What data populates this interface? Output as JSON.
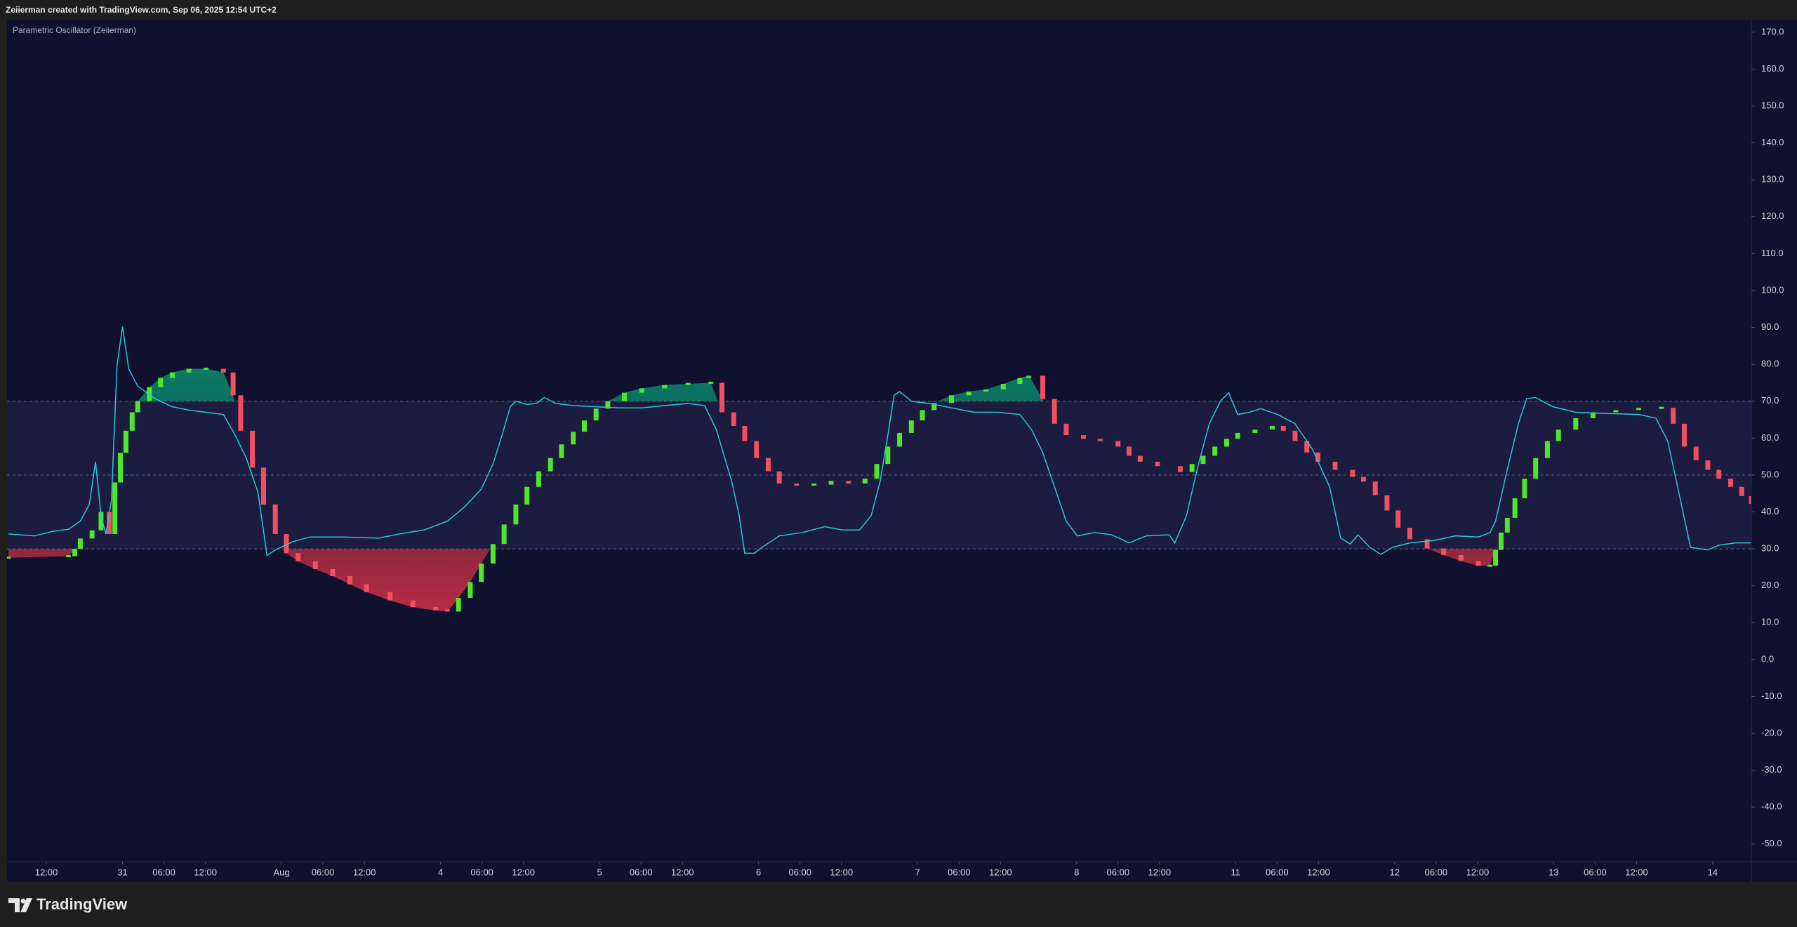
{
  "header": {
    "text": "Zeiierman created with TradingView.com, Sep 06, 2025 12:54 UTC+2"
  },
  "footer": {
    "brand": "TradingView"
  },
  "chart_data": {
    "type": "oscillator",
    "title": "Parametric Oscillator (Zeiierman)",
    "xlim": [
      -5.7,
      246.6
    ],
    "ylim": [
      -54.8,
      173.4
    ],
    "levels": [
      70,
      50,
      30
    ],
    "band": [
      30,
      70
    ],
    "band_color": "#1c1b40",
    "background": "#10112e",
    "xticks": [
      {
        "value": 0,
        "label": "12:00"
      },
      {
        "value": 11,
        "label": "31"
      },
      {
        "value": 17,
        "label": "06:00"
      },
      {
        "value": 23,
        "label": "12:00"
      },
      {
        "value": 34,
        "label": "Aug"
      },
      {
        "value": 40,
        "label": "06:00"
      },
      {
        "value": 46,
        "label": "12:00"
      },
      {
        "value": 57,
        "label": "4"
      },
      {
        "value": 63,
        "label": "06:00"
      },
      {
        "value": 69,
        "label": "12:00"
      },
      {
        "value": 80,
        "label": "5"
      },
      {
        "value": 86,
        "label": "06:00"
      },
      {
        "value": 92,
        "label": "12:00"
      },
      {
        "value": 103,
        "label": "6"
      },
      {
        "value": 109,
        "label": "06:00"
      },
      {
        "value": 115,
        "label": "12:00"
      },
      {
        "value": 126,
        "label": "7"
      },
      {
        "value": 132,
        "label": "06:00"
      },
      {
        "value": 138,
        "label": "12:00"
      },
      {
        "value": 149,
        "label": "8"
      },
      {
        "value": 155,
        "label": "06:00"
      },
      {
        "value": 161,
        "label": "12:00"
      },
      {
        "value": 172,
        "label": "11"
      },
      {
        "value": 178,
        "label": "06:00"
      },
      {
        "value": 184,
        "label": "12:00"
      },
      {
        "value": 195,
        "label": "12"
      },
      {
        "value": 201,
        "label": "06:00"
      },
      {
        "value": 207,
        "label": "12:00"
      },
      {
        "value": 218,
        "label": "13"
      },
      {
        "value": 224,
        "label": "06:00"
      },
      {
        "value": 230,
        "label": "12:00"
      },
      {
        "value": 241,
        "label": "14"
      }
    ],
    "yticks": [
      {
        "value": 170,
        "label": "170.0"
      },
      {
        "value": 160,
        "label": "160.0"
      },
      {
        "value": 150,
        "label": "150.0"
      },
      {
        "value": 140,
        "label": "140.0"
      },
      {
        "value": 130,
        "label": "130.0"
      },
      {
        "value": 120,
        "label": "120.0"
      },
      {
        "value": 110,
        "label": "110.0"
      },
      {
        "value": 100,
        "label": "100.0"
      },
      {
        "value": 90,
        "label": "90.0"
      },
      {
        "value": 80,
        "label": "80.0"
      },
      {
        "value": 70,
        "label": "70.0"
      },
      {
        "value": 60,
        "label": "60.0"
      },
      {
        "value": 50,
        "label": "50.0"
      },
      {
        "value": 40,
        "label": "40.0"
      },
      {
        "value": 30,
        "label": "30.0"
      },
      {
        "value": 20,
        "label": "20.0"
      },
      {
        "value": 10,
        "label": "10.0"
      },
      {
        "value": 0,
        "label": "0.0"
      },
      {
        "value": -10,
        "label": "-10.0"
      },
      {
        "value": -20,
        "label": "-20.0"
      },
      {
        "value": -30,
        "label": "-30.0"
      },
      {
        "value": -40,
        "label": "-40.0"
      },
      {
        "value": -50,
        "label": "-50.0"
      }
    ],
    "series": [
      {
        "type": "candles",
        "up_color": "#4ee62a",
        "down_color": "#f0505f",
        "upper_fill": "#0a9e78",
        "lower_fill": "#e0344a",
        "x": [
          -5.5,
          3.2,
          4.1,
          4.9,
          6.6,
          7.9,
          9.1,
          9.9,
          10.7,
          11.5,
          12.4,
          13.2,
          14.9,
          16.5,
          18.2,
          20.6,
          23.1,
          25.6,
          27.0,
          28.1,
          29.8,
          31.4,
          33.1,
          34.7,
          36.4,
          38.9,
          41.4,
          43.9,
          46.3,
          49.7,
          53.0,
          56.3,
          58.0,
          59.6,
          61.3,
          62.9,
          64.6,
          66.2,
          67.9,
          69.5,
          71.2,
          72.9,
          74.5,
          76.2,
          77.8,
          79.5,
          81.2,
          83.6,
          86.1,
          89.4,
          92.8,
          96.1,
          97.7,
          99.4,
          101.0,
          102.7,
          104.4,
          106.0,
          108.5,
          111.0,
          113.5,
          116.0,
          118.4,
          120.1,
          121.7,
          123.4,
          125.1,
          126.7,
          128.4,
          130.9,
          133.4,
          135.9,
          138.4,
          140.8,
          142.1,
          144.1,
          145.8,
          147.5,
          150.0,
          152.4,
          155.0,
          156.6,
          158.2,
          160.7,
          164.0,
          165.7,
          167.3,
          169.0,
          170.7,
          172.3,
          174.8,
          177.3,
          178.9,
          180.6,
          182.3,
          183.9,
          186.4,
          188.9,
          190.5,
          192.2,
          193.9,
          195.5,
          197.2,
          199.7,
          202.1,
          204.6,
          207.1,
          208.8,
          209.6,
          210.4,
          211.3,
          212.4,
          213.8,
          215.4,
          217.1,
          218.7,
          221.2,
          223.7,
          227.0,
          230.3,
          233.6,
          235.3,
          236.9,
          238.6,
          240.3,
          241.9,
          243.6,
          245.2,
          246.6
        ],
        "values": [
          27.6,
          28,
          30,
          32.8,
          35,
          40,
          34,
          48,
          56,
          62,
          67,
          70,
          73.8,
          76.3,
          77.8,
          78.8,
          78.8,
          77.8,
          71.6,
          62,
          52,
          42,
          34,
          28.8,
          26.6,
          24.5,
          22.6,
          20.4,
          18.3,
          16,
          14.2,
          13.3,
          13,
          16.7,
          21,
          26,
          31.3,
          36.6,
          42,
          46.8,
          51,
          54.6,
          58.3,
          61.7,
          64.8,
          68,
          70,
          72.3,
          73.5,
          74.4,
          74.7,
          75,
          67,
          63.3,
          59.2,
          54.6,
          51,
          47.7,
          47.1,
          47.4,
          48.4,
          47.7,
          49,
          53,
          57.7,
          61.4,
          64.8,
          67.6,
          69.5,
          71.6,
          72.6,
          73.2,
          74.7,
          76.3,
          76.9,
          70.6,
          63.9,
          60.8,
          59.8,
          59.2,
          57.7,
          55.2,
          53.6,
          52.4,
          50.8,
          53,
          55.2,
          57.7,
          59.8,
          61.4,
          62.3,
          63.3,
          62,
          59.2,
          56.1,
          53.6,
          51.4,
          49.5,
          48.2,
          44.5,
          40.4,
          35.7,
          32.6,
          30.1,
          28.3,
          26.7,
          25.4,
          25.4,
          29.7,
          34.4,
          38.4,
          43.7,
          49,
          54.6,
          59.2,
          62.3,
          65.4,
          67,
          67.6,
          68.2,
          68.2,
          63.9,
          57.7,
          54,
          51.4,
          49,
          46.8,
          44.3,
          42.2
        ]
      },
      {
        "type": "line",
        "color": "#2ac8d8",
        "x": [
          -5.5,
          -1.7,
          0.8,
          3.2,
          4.9,
          6.2,
          7.1,
          7.9,
          8.6,
          9.4,
          10.2,
          11.0,
          11.9,
          13.2,
          15.7,
          18.2,
          20.6,
          23.1,
          25.6,
          27.3,
          28.9,
          30.6,
          31.9,
          33.1,
          35.6,
          38.1,
          43.0,
          48.0,
          51.3,
          54.6,
          58.0,
          60.4,
          62.9,
          64.6,
          65.9,
          67.1,
          67.9,
          69.5,
          70.9,
          72.0,
          73.7,
          76.2,
          79.5,
          82.8,
          86.1,
          89.4,
          92.8,
          95.2,
          96.9,
          99.1,
          100.2,
          101.0,
          102.4,
          103.5,
          106.0,
          109.3,
          112.6,
          115.1,
          117.6,
          119.3,
          120.6,
          121.7,
          122.6,
          123.4,
          125.1,
          127.6,
          130.9,
          134.2,
          137.6,
          140.8,
          142.5,
          144.1,
          145.8,
          147.5,
          149.1,
          151.6,
          154.1,
          156.6,
          159.1,
          162.4,
          163.2,
          164.9,
          166.5,
          168.2,
          169.8,
          171.0,
          172.3,
          174.0,
          175.6,
          178.1,
          180.6,
          183.1,
          185.6,
          187.2,
          188.6,
          189.7,
          191.4,
          193.0,
          194.7,
          197.2,
          200.5,
          203.8,
          207.1,
          208.8,
          209.6,
          211.3,
          212.9,
          214.1,
          215.4,
          217.9,
          221.2,
          225.4,
          230.3,
          232.8,
          234.5,
          236.1,
          237.8,
          240.3,
          241.9,
          244.4,
          246.6
        ],
        "values": [
          34,
          33.5,
          34.7,
          35.3,
          37.5,
          42,
          53.6,
          39,
          34,
          43,
          79.4,
          90.2,
          78.8,
          74.1,
          70.7,
          68.5,
          67.6,
          67,
          66.4,
          60.8,
          54.6,
          45.3,
          28.2,
          29.7,
          31.9,
          33.2,
          33.2,
          32.9,
          34.1,
          35.1,
          37.5,
          41.2,
          46.2,
          53,
          60.8,
          68.5,
          70,
          69.1,
          69.4,
          71,
          69.4,
          68.8,
          68.5,
          68.2,
          68.2,
          68.8,
          69.4,
          68.8,
          62.3,
          48.4,
          39,
          28.8,
          28.8,
          30.4,
          33.5,
          34.4,
          36,
          35.1,
          35.1,
          39,
          48.4,
          60.8,
          71.6,
          72.6,
          70,
          69.4,
          68.2,
          67,
          67,
          66.4,
          62.3,
          56.1,
          46.8,
          37.5,
          33.5,
          34.4,
          33.8,
          31.6,
          33.5,
          33.8,
          31.6,
          39,
          52,
          63.9,
          70,
          72.3,
          66.4,
          67,
          68,
          66.4,
          63.9,
          57,
          46.8,
          32.9,
          31.3,
          33.8,
          30.4,
          28.5,
          30.4,
          31.6,
          32.2,
          33.5,
          33.2,
          34.4,
          37.5,
          51.5,
          63.9,
          70.7,
          71,
          68.5,
          67,
          66.7,
          66.4,
          65.4,
          59.2,
          45.3,
          30.4,
          29.7,
          31,
          31.6,
          31.6
        ]
      }
    ]
  }
}
